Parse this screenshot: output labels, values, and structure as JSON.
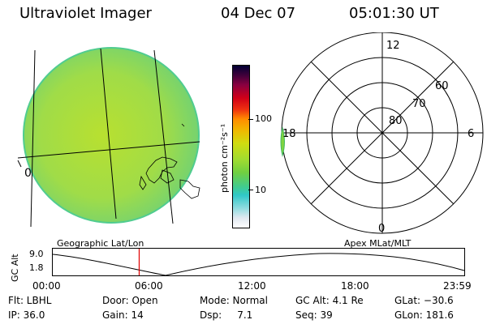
{
  "header": {
    "instrument": "Ultraviolet Imager",
    "date": "04 Dec 07",
    "time": "05:01:30 UT"
  },
  "left_panel": {
    "edge_label": "0"
  },
  "colorbar": {
    "unit_label": "photon cm⁻²s⁻¹",
    "ticks": [
      "100",
      "10"
    ]
  },
  "polar_plot": {
    "mlt_labels": {
      "top": "12",
      "left": "18",
      "right": "6",
      "bottom": "0"
    },
    "lat_labels": [
      "60",
      "70",
      "80"
    ]
  },
  "projection_labels": {
    "left": "Geographic Lat/Lon",
    "right": "Apex MLat/MLT"
  },
  "altitude_strip": {
    "axis_label": "GC Alt",
    "y_ticks": [
      "9.0",
      "1.8"
    ],
    "x_ticks": [
      "00:00",
      "06:00",
      "12:00",
      "18:00",
      "23:59"
    ],
    "current_time_fraction": 0.21
  },
  "status": {
    "filter": "Flt: LBHL",
    "ip": "IP: 36.0",
    "door": "Door: Open",
    "gain": "Gain: 14",
    "mode": "Mode: Normal",
    "dsp": "Dsp:     7.1",
    "gc_alt": "GC Alt: 4.1 Re",
    "seq": "Seq: 39",
    "glat": "GLat: −30.6",
    "glon": "GLon: 181.6"
  },
  "colors": {
    "disk_fill": "#a8e040",
    "disk_edge": "#50cc90",
    "red_marker": "#e00000"
  }
}
